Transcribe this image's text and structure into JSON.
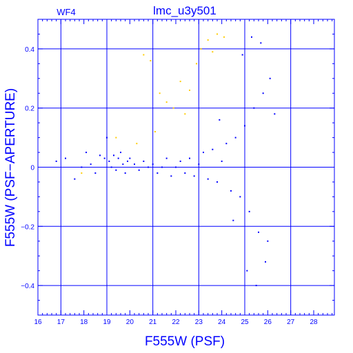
{
  "chart_data": {
    "type": "scatter",
    "title": "lmc_u3y501",
    "chip_label": "WF4",
    "xlabel": "F555W (PSF)",
    "ylabel": "F555W (PSF−APERTURE)",
    "xlim": [
      16,
      28.9
    ],
    "ylim": [
      -0.5,
      0.5
    ],
    "x_ticks": [
      16,
      17,
      18,
      19,
      20,
      21,
      22,
      23,
      24,
      25,
      26,
      27,
      28
    ],
    "y_ticks": [
      -0.4,
      -0.2,
      0,
      0.2,
      0.4
    ],
    "y_tick_labels": [
      "−0.4",
      "−0.2",
      "0",
      "0.2",
      "0.4"
    ],
    "grid": true,
    "colors": {
      "axes": "#0000ff",
      "main": "#0000ff",
      "outlier": "#ffcc00"
    },
    "series": [
      {
        "color": "#0000ff",
        "points": [
          [
            16.8,
            0.02
          ],
          [
            17.2,
            0.03
          ],
          [
            17.6,
            -0.04
          ],
          [
            17.9,
            0.0
          ],
          [
            18.1,
            0.05
          ],
          [
            18.3,
            0.01
          ],
          [
            18.5,
            -0.02
          ],
          [
            18.7,
            0.04
          ],
          [
            18.9,
            0.03
          ],
          [
            19.0,
            0.1
          ],
          [
            19.1,
            0.02
          ],
          [
            19.2,
            0.0
          ],
          [
            19.3,
            0.04
          ],
          [
            19.4,
            -0.01
          ],
          [
            19.5,
            0.03
          ],
          [
            19.6,
            0.05
          ],
          [
            19.7,
            0.01
          ],
          [
            19.8,
            -0.02
          ],
          [
            19.9,
            0.02
          ],
          [
            20.0,
            0.03
          ],
          [
            20.2,
            0.01
          ],
          [
            20.4,
            -0.01
          ],
          [
            20.6,
            0.02
          ],
          [
            20.8,
            0.0
          ],
          [
            21.0,
            0.01
          ],
          [
            21.2,
            -0.02
          ],
          [
            21.4,
            0.0
          ],
          [
            21.6,
            0.03
          ],
          [
            21.8,
            -0.03
          ],
          [
            22.0,
            0.0
          ],
          [
            22.2,
            0.02
          ],
          [
            22.4,
            -0.02
          ],
          [
            22.6,
            0.03
          ],
          [
            22.8,
            -0.03
          ],
          [
            23.0,
            0.01
          ],
          [
            23.2,
            0.05
          ],
          [
            23.4,
            -0.04
          ],
          [
            23.6,
            0.06
          ],
          [
            23.8,
            -0.05
          ],
          [
            24.0,
            0.02
          ],
          [
            24.2,
            0.08
          ],
          [
            24.4,
            -0.08
          ],
          [
            24.6,
            0.1
          ],
          [
            24.8,
            -0.1
          ],
          [
            25.0,
            0.14
          ],
          [
            25.2,
            -0.15
          ],
          [
            25.4,
            0.2
          ],
          [
            25.6,
            -0.22
          ],
          [
            25.8,
            0.25
          ],
          [
            26.0,
            -0.25
          ],
          [
            24.9,
            0.38
          ],
          [
            25.3,
            0.44
          ],
          [
            25.7,
            0.42
          ],
          [
            26.1,
            0.3
          ],
          [
            25.1,
            -0.35
          ],
          [
            25.5,
            -0.4
          ],
          [
            25.9,
            -0.32
          ],
          [
            24.5,
            -0.18
          ],
          [
            23.9,
            0.16
          ],
          [
            26.3,
            0.18
          ]
        ]
      },
      {
        "color": "#ffcc00",
        "points": [
          [
            17.9,
            -0.02
          ],
          [
            19.4,
            0.1
          ],
          [
            20.3,
            0.08
          ],
          [
            20.6,
            0.38
          ],
          [
            20.9,
            0.36
          ],
          [
            21.3,
            0.25
          ],
          [
            21.6,
            0.22
          ],
          [
            21.9,
            0.2
          ],
          [
            22.2,
            0.29
          ],
          [
            22.6,
            0.26
          ],
          [
            22.9,
            0.35
          ],
          [
            23.1,
            0.4
          ],
          [
            23.4,
            0.43
          ],
          [
            23.6,
            0.39
          ],
          [
            23.8,
            0.45
          ],
          [
            24.1,
            0.44
          ],
          [
            21.1,
            0.12
          ],
          [
            22.4,
            0.18
          ]
        ]
      }
    ]
  }
}
